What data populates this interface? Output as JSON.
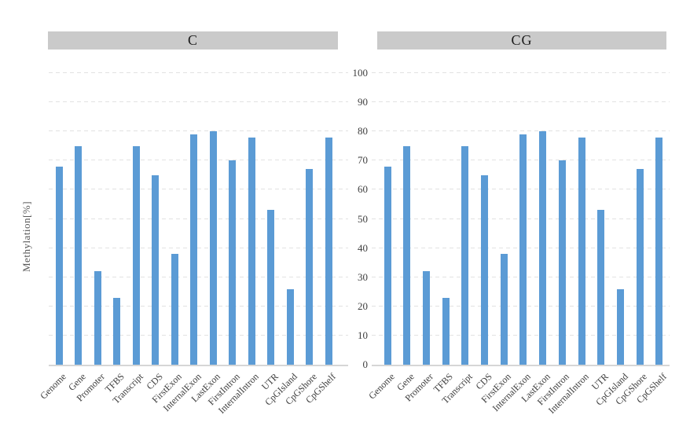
{
  "figure": {
    "y_axis_title": "Methylation[%]",
    "y_tick_labels": [
      "100",
      "90",
      "80",
      "70",
      "60",
      "50",
      "40",
      "30",
      "20",
      "10",
      "0"
    ]
  },
  "colors": {
    "bar": "#5b9bd5",
    "panel_header_bg": "#cacaca",
    "gridline": "#e2e2e2",
    "axis_line": "#d6d6d6",
    "tick_text": "#3f3f3f"
  },
  "chart_data": [
    {
      "type": "bar",
      "title": "C",
      "categories": [
        "Genome",
        "Gene",
        "Promoter",
        "TFBS",
        "Transcript",
        "CDS",
        "FirstExon",
        "InternalExon",
        "LastExon",
        "FirstIntron",
        "InternalIntron",
        "UTR",
        "CpGIsland",
        "CpGShore",
        "CpGShelf"
      ],
      "values": [
        68,
        75,
        32,
        23,
        75,
        65,
        38,
        79,
        80,
        70,
        78,
        53,
        26,
        67,
        78
      ],
      "ylabel": "Methylation[%]",
      "ylim": [
        0,
        100
      ],
      "ytick_step": 10,
      "grid": "horizontal-dashed",
      "legend": false
    },
    {
      "type": "bar",
      "title": "CG",
      "categories": [
        "Genome",
        "Gene",
        "Promoter",
        "TFBS",
        "Transcript",
        "CDS",
        "FirstExon",
        "InternalExon",
        "LastExon",
        "FirstIntron",
        "InternalIntron",
        "UTR",
        "CpGIsland",
        "CpGShore",
        "CpGShelf"
      ],
      "values": [
        68,
        75,
        32,
        23,
        75,
        65,
        38,
        79,
        80,
        70,
        78,
        53,
        26,
        67,
        78
      ],
      "ylabel": "Methylation[%]",
      "ylim": [
        0,
        100
      ],
      "ytick_step": 10,
      "grid": "horizontal-dashed",
      "legend": false
    }
  ]
}
